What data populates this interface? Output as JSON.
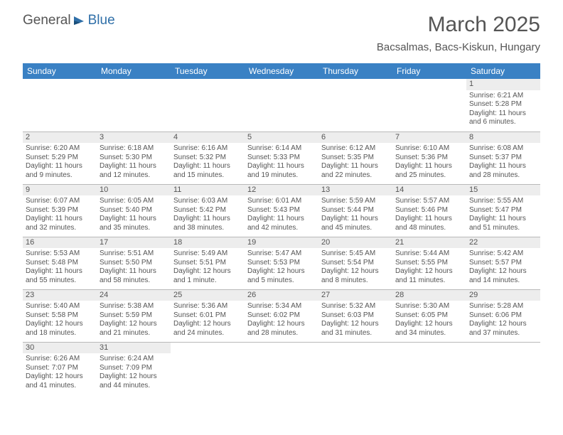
{
  "logo": {
    "text1": "General",
    "text2": "Blue"
  },
  "title": "March 2025",
  "location": "Bacsalmas, Bacs-Kiskun, Hungary",
  "colors": {
    "header_bg": "#3a81c4",
    "header_fg": "#ffffff",
    "daynum_bg": "#ededed",
    "border": "#b9b9b9",
    "text": "#555555"
  },
  "weekdays": [
    "Sunday",
    "Monday",
    "Tuesday",
    "Wednesday",
    "Thursday",
    "Friday",
    "Saturday"
  ],
  "weeks": [
    [
      null,
      null,
      null,
      null,
      null,
      null,
      {
        "n": "1",
        "sr": "Sunrise: 6:21 AM",
        "ss": "Sunset: 5:28 PM",
        "d1": "Daylight: 11 hours",
        "d2": "and 6 minutes."
      }
    ],
    [
      {
        "n": "2",
        "sr": "Sunrise: 6:20 AM",
        "ss": "Sunset: 5:29 PM",
        "d1": "Daylight: 11 hours",
        "d2": "and 9 minutes."
      },
      {
        "n": "3",
        "sr": "Sunrise: 6:18 AM",
        "ss": "Sunset: 5:30 PM",
        "d1": "Daylight: 11 hours",
        "d2": "and 12 minutes."
      },
      {
        "n": "4",
        "sr": "Sunrise: 6:16 AM",
        "ss": "Sunset: 5:32 PM",
        "d1": "Daylight: 11 hours",
        "d2": "and 15 minutes."
      },
      {
        "n": "5",
        "sr": "Sunrise: 6:14 AM",
        "ss": "Sunset: 5:33 PM",
        "d1": "Daylight: 11 hours",
        "d2": "and 19 minutes."
      },
      {
        "n": "6",
        "sr": "Sunrise: 6:12 AM",
        "ss": "Sunset: 5:35 PM",
        "d1": "Daylight: 11 hours",
        "d2": "and 22 minutes."
      },
      {
        "n": "7",
        "sr": "Sunrise: 6:10 AM",
        "ss": "Sunset: 5:36 PM",
        "d1": "Daylight: 11 hours",
        "d2": "and 25 minutes."
      },
      {
        "n": "8",
        "sr": "Sunrise: 6:08 AM",
        "ss": "Sunset: 5:37 PM",
        "d1": "Daylight: 11 hours",
        "d2": "and 28 minutes."
      }
    ],
    [
      {
        "n": "9",
        "sr": "Sunrise: 6:07 AM",
        "ss": "Sunset: 5:39 PM",
        "d1": "Daylight: 11 hours",
        "d2": "and 32 minutes."
      },
      {
        "n": "10",
        "sr": "Sunrise: 6:05 AM",
        "ss": "Sunset: 5:40 PM",
        "d1": "Daylight: 11 hours",
        "d2": "and 35 minutes."
      },
      {
        "n": "11",
        "sr": "Sunrise: 6:03 AM",
        "ss": "Sunset: 5:42 PM",
        "d1": "Daylight: 11 hours",
        "d2": "and 38 minutes."
      },
      {
        "n": "12",
        "sr": "Sunrise: 6:01 AM",
        "ss": "Sunset: 5:43 PM",
        "d1": "Daylight: 11 hours",
        "d2": "and 42 minutes."
      },
      {
        "n": "13",
        "sr": "Sunrise: 5:59 AM",
        "ss": "Sunset: 5:44 PM",
        "d1": "Daylight: 11 hours",
        "d2": "and 45 minutes."
      },
      {
        "n": "14",
        "sr": "Sunrise: 5:57 AM",
        "ss": "Sunset: 5:46 PM",
        "d1": "Daylight: 11 hours",
        "d2": "and 48 minutes."
      },
      {
        "n": "15",
        "sr": "Sunrise: 5:55 AM",
        "ss": "Sunset: 5:47 PM",
        "d1": "Daylight: 11 hours",
        "d2": "and 51 minutes."
      }
    ],
    [
      {
        "n": "16",
        "sr": "Sunrise: 5:53 AM",
        "ss": "Sunset: 5:48 PM",
        "d1": "Daylight: 11 hours",
        "d2": "and 55 minutes."
      },
      {
        "n": "17",
        "sr": "Sunrise: 5:51 AM",
        "ss": "Sunset: 5:50 PM",
        "d1": "Daylight: 11 hours",
        "d2": "and 58 minutes."
      },
      {
        "n": "18",
        "sr": "Sunrise: 5:49 AM",
        "ss": "Sunset: 5:51 PM",
        "d1": "Daylight: 12 hours",
        "d2": "and 1 minute."
      },
      {
        "n": "19",
        "sr": "Sunrise: 5:47 AM",
        "ss": "Sunset: 5:53 PM",
        "d1": "Daylight: 12 hours",
        "d2": "and 5 minutes."
      },
      {
        "n": "20",
        "sr": "Sunrise: 5:45 AM",
        "ss": "Sunset: 5:54 PM",
        "d1": "Daylight: 12 hours",
        "d2": "and 8 minutes."
      },
      {
        "n": "21",
        "sr": "Sunrise: 5:44 AM",
        "ss": "Sunset: 5:55 PM",
        "d1": "Daylight: 12 hours",
        "d2": "and 11 minutes."
      },
      {
        "n": "22",
        "sr": "Sunrise: 5:42 AM",
        "ss": "Sunset: 5:57 PM",
        "d1": "Daylight: 12 hours",
        "d2": "and 14 minutes."
      }
    ],
    [
      {
        "n": "23",
        "sr": "Sunrise: 5:40 AM",
        "ss": "Sunset: 5:58 PM",
        "d1": "Daylight: 12 hours",
        "d2": "and 18 minutes."
      },
      {
        "n": "24",
        "sr": "Sunrise: 5:38 AM",
        "ss": "Sunset: 5:59 PM",
        "d1": "Daylight: 12 hours",
        "d2": "and 21 minutes."
      },
      {
        "n": "25",
        "sr": "Sunrise: 5:36 AM",
        "ss": "Sunset: 6:01 PM",
        "d1": "Daylight: 12 hours",
        "d2": "and 24 minutes."
      },
      {
        "n": "26",
        "sr": "Sunrise: 5:34 AM",
        "ss": "Sunset: 6:02 PM",
        "d1": "Daylight: 12 hours",
        "d2": "and 28 minutes."
      },
      {
        "n": "27",
        "sr": "Sunrise: 5:32 AM",
        "ss": "Sunset: 6:03 PM",
        "d1": "Daylight: 12 hours",
        "d2": "and 31 minutes."
      },
      {
        "n": "28",
        "sr": "Sunrise: 5:30 AM",
        "ss": "Sunset: 6:05 PM",
        "d1": "Daylight: 12 hours",
        "d2": "and 34 minutes."
      },
      {
        "n": "29",
        "sr": "Sunrise: 5:28 AM",
        "ss": "Sunset: 6:06 PM",
        "d1": "Daylight: 12 hours",
        "d2": "and 37 minutes."
      }
    ],
    [
      {
        "n": "30",
        "sr": "Sunrise: 6:26 AM",
        "ss": "Sunset: 7:07 PM",
        "d1": "Daylight: 12 hours",
        "d2": "and 41 minutes."
      },
      {
        "n": "31",
        "sr": "Sunrise: 6:24 AM",
        "ss": "Sunset: 7:09 PM",
        "d1": "Daylight: 12 hours",
        "d2": "and 44 minutes."
      },
      null,
      null,
      null,
      null,
      null
    ]
  ]
}
